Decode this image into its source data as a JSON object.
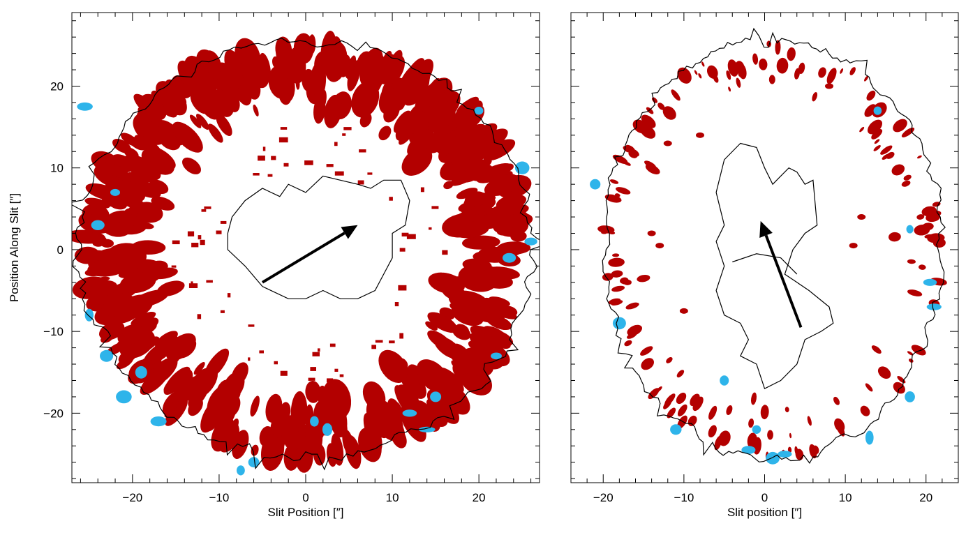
{
  "colors": {
    "redshift": "#b30000",
    "blueshift": "#2eb4ea",
    "contour": "#000000",
    "arrow": "#000000",
    "frame": "#000000"
  },
  "chart_data": [
    {
      "type": "scatter",
      "panel": "left",
      "xlabel": "Slit Position [″]",
      "ylabel": "Position Along Slit [″]",
      "xlim": [
        -27,
        27
      ],
      "ylim": [
        -28.5,
        29
      ],
      "x_major_ticks": [
        -20,
        -10,
        0,
        10,
        20
      ],
      "y_major_ticks": [
        -20,
        -10,
        0,
        10,
        20
      ],
      "x_tick_labels": [
        "−20",
        "−10",
        "0",
        "10",
        "20"
      ],
      "y_tick_labels": [
        "−20",
        "−10",
        "0",
        "10",
        "20"
      ],
      "minor_tick_step": 2,
      "outer_contour": {
        "center": [
          0,
          0
        ],
        "rx": 26,
        "ry": 25.5,
        "ragged": true
      },
      "inner_contour_polygon": [
        [
          -9,
          2
        ],
        [
          -8.5,
          4
        ],
        [
          -7,
          6
        ],
        [
          -5,
          7.5
        ],
        [
          -3,
          6.5
        ],
        [
          -2,
          8
        ],
        [
          0,
          7
        ],
        [
          2,
          9
        ],
        [
          4,
          8.5
        ],
        [
          6,
          8
        ],
        [
          7.5,
          7.5
        ],
        [
          9,
          8.5
        ],
        [
          11,
          8.5
        ],
        [
          12,
          6
        ],
        [
          11.5,
          3
        ],
        [
          10,
          2
        ],
        [
          10,
          -1
        ],
        [
          9,
          -3
        ],
        [
          8,
          -5
        ],
        [
          6,
          -6
        ],
        [
          4,
          -6
        ],
        [
          2,
          -5
        ],
        [
          0,
          -6
        ],
        [
          -2,
          -6
        ],
        [
          -5,
          -4.5
        ],
        [
          -7,
          -2
        ],
        [
          -9,
          0
        ]
      ],
      "arrow": {
        "from": [
          -5,
          -4
        ],
        "to": [
          6,
          3
        ]
      },
      "redshift_region": {
        "inner_radius": 16,
        "outer_radius": 25.5
      },
      "blueshift_features": [
        [
          -25.5,
          17.5
        ],
        [
          -25,
          -8
        ],
        [
          -23,
          -13
        ],
        [
          -21,
          -18
        ],
        [
          -7.5,
          -27
        ],
        [
          -6,
          -26
        ],
        [
          1,
          -21
        ],
        [
          2.5,
          -22
        ],
        [
          12,
          -20
        ],
        [
          14,
          -22
        ],
        [
          23.5,
          -1
        ],
        [
          25,
          10
        ],
        [
          26,
          1
        ],
        [
          20,
          17
        ],
        [
          -22,
          7
        ],
        [
          -24,
          3
        ],
        [
          -19,
          -15
        ],
        [
          -17,
          -21
        ],
        [
          15,
          -18
        ],
        [
          22,
          -13
        ]
      ]
    },
    {
      "type": "scatter",
      "panel": "right",
      "xlabel": "Slit position [″]",
      "ylabel": "",
      "xlim": [
        -24,
        24
      ],
      "ylim": [
        -28.5,
        29
      ],
      "x_major_ticks": [
        -20,
        -10,
        0,
        10,
        20
      ],
      "y_major_ticks": [
        -20,
        -10,
        0,
        10,
        20
      ],
      "x_tick_labels": [
        "−20",
        "−10",
        "0",
        "10",
        "20"
      ],
      "minor_tick_step": 2,
      "outer_contour": {
        "center": [
          1,
          0
        ],
        "rx": 21,
        "ry": 25.5,
        "ragged": true
      },
      "inner_contour_polygon": [
        [
          -3,
          13
        ],
        [
          -1,
          12.5
        ],
        [
          0,
          10
        ],
        [
          1,
          8
        ],
        [
          2,
          9
        ],
        [
          3,
          10
        ],
        [
          4,
          9.5
        ],
        [
          5,
          8
        ],
        [
          6,
          8.5
        ],
        [
          6.5,
          3
        ],
        [
          5,
          2
        ],
        [
          3.5,
          0
        ],
        [
          2.5,
          -3
        ],
        [
          4,
          -4
        ],
        [
          5.5,
          -5
        ],
        [
          8,
          -7
        ],
        [
          8.5,
          -9
        ],
        [
          7,
          -10
        ],
        [
          5,
          -11
        ],
        [
          4,
          -14
        ],
        [
          2,
          -16
        ],
        [
          0,
          -17
        ],
        [
          -1,
          -14
        ],
        [
          -3,
          -13
        ],
        [
          -2,
          -11
        ],
        [
          -3,
          -9
        ],
        [
          -5,
          -8
        ],
        [
          -6,
          -5
        ],
        [
          -5,
          -2
        ],
        [
          -6,
          1
        ],
        [
          -5,
          3
        ],
        [
          -6,
          7
        ],
        [
          -5,
          11
        ]
      ],
      "inner_contour_divider": [
        [
          -4,
          -1.5
        ],
        [
          -1,
          -0.5
        ],
        [
          2,
          -1
        ],
        [
          4,
          -3
        ]
      ],
      "arrow": {
        "from": [
          4.5,
          -9.5
        ],
        "to": [
          -0.5,
          3.5
        ]
      },
      "redshift_region": {
        "inner_radius": 18,
        "outer_radius": 25.5
      },
      "blueshift_features": [
        [
          -21,
          8
        ],
        [
          -18,
          -9
        ],
        [
          -11,
          -22
        ],
        [
          -5,
          -16
        ],
        [
          -2,
          -24.5
        ],
        [
          1,
          -25.5
        ],
        [
          2.5,
          -25
        ],
        [
          13,
          -23
        ],
        [
          18,
          -18
        ],
        [
          21,
          -7
        ],
        [
          18,
          2.5
        ],
        [
          20.5,
          -4
        ],
        [
          14,
          17
        ],
        [
          -1,
          -22
        ]
      ]
    }
  ]
}
